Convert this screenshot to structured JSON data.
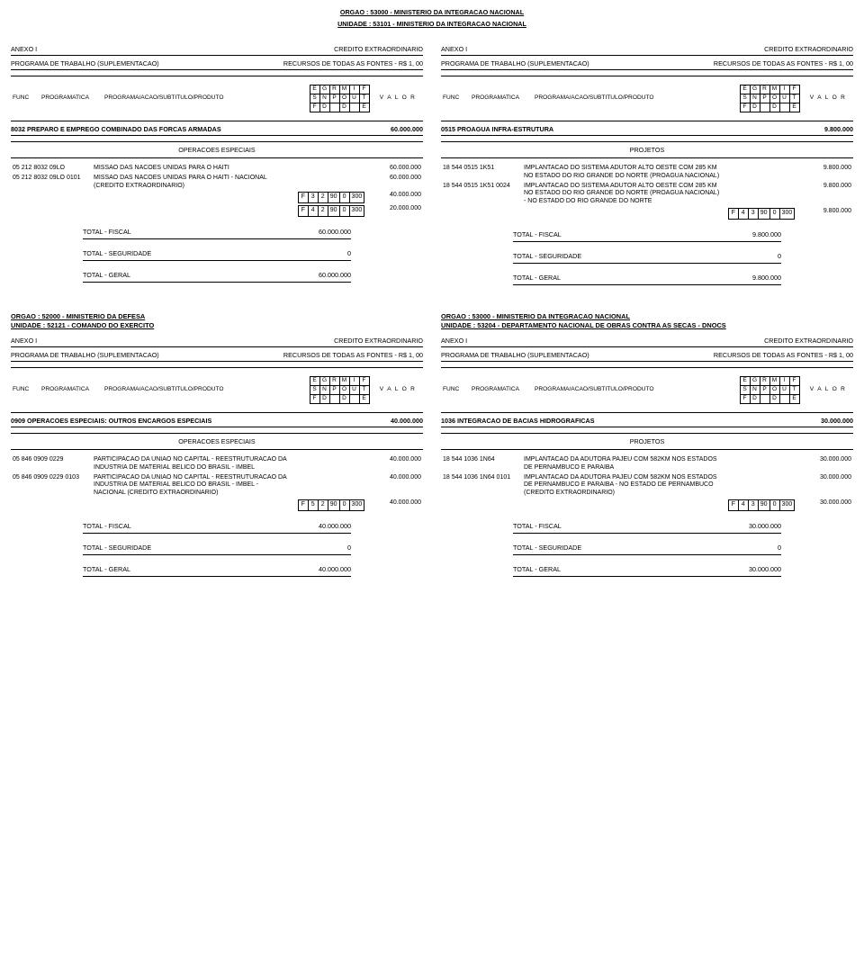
{
  "top_header": {
    "orgao": "ORGAO : 53000 - MINISTERIO DA INTEGRACAO NACIONAL",
    "unidade": "UNIDADE : 53101 - MINISTERIO DA INTEGRACAO NACIONAL"
  },
  "shared": {
    "anexo": "ANEXO I",
    "credito": "CREDITO EXTRAORDINARIO",
    "programa": "PROGRAMA DE TRABALHO (SUPLEMENTACAO)",
    "recursos": "RECURSOS DE TODAS AS FONTES - R$ 1, 00",
    "colhdr": {
      "func": "FUNC",
      "programatica": "PROGRAMATICA",
      "produto": "PROGRAMA/ACAO/SUBTITULO/PRODUTO",
      "grid_top": [
        "E",
        "G",
        "R",
        "M",
        "I",
        "F"
      ],
      "grid_mid": [
        "S",
        "N",
        "P",
        "O",
        "U",
        "T"
      ],
      "grid_bot": [
        "F",
        "D",
        "",
        "D",
        "",
        "E"
      ],
      "valor": "V A L O R"
    },
    "total_fiscal": "TOTAL - FISCAL",
    "total_seguridade": "TOTAL - SEGURIDADE",
    "total_geral": "TOTAL - GERAL",
    "operacoes": "OPERACOES ESPECIAIS",
    "projetos": "PROJETOS"
  },
  "upper": {
    "left": {
      "program_title": "8032 PREPARO E EMPREGO COMBINADO DAS FORCAS ARMADAS",
      "program_value": "60.000.000",
      "section": "OPERACOES ESPECIAIS",
      "rows": [
        {
          "code": "05 212 8032 09LO",
          "desc": "MISSAO DAS NACOES UNIDAS PARA O HAITI",
          "grid": null,
          "value": "60.000.000"
        },
        {
          "code": "05 212 8032 09LO 0101",
          "desc": "MISSAO DAS NACOES UNIDAS PARA O HAITI - NACIONAL (CREDITO EXTRAORDINARIO)",
          "grid": null,
          "value": "60.000.000"
        },
        {
          "code": "",
          "desc": "",
          "grid": [
            "F",
            "3",
            "2",
            "90",
            "0",
            "300"
          ],
          "value": "40.000.000"
        },
        {
          "code": "",
          "desc": "",
          "grid": [
            "F",
            "4",
            "2",
            "90",
            "0",
            "300"
          ],
          "value": "20.000.000"
        }
      ],
      "totals": {
        "fiscal": "60.000.000",
        "seguridade": "0",
        "geral": "60.000.000"
      }
    },
    "right": {
      "program_title": "0515 PROAGUA INFRA-ESTRUTURA",
      "program_value": "9.800.000",
      "section": "PROJETOS",
      "rows": [
        {
          "code": "18 544 0515 1K51",
          "desc": "IMPLANTACAO DO SISTEMA ADUTOR ALTO OESTE COM 285 KM NO ESTADO DO RIO GRANDE DO NORTE (PROAGUA NACIONAL)",
          "grid": null,
          "value": "9.800.000"
        },
        {
          "code": "18 544 0515 1K51 0024",
          "desc": "IMPLANTACAO DO SISTEMA ADUTOR ALTO OESTE COM 285 KM NO ESTADO DO RIO GRANDE DO NORTE (PROAGUA NACIONAL) - NO ESTADO DO RIO GRANDE DO NORTE",
          "grid": null,
          "value": "9.800.000"
        },
        {
          "code": "",
          "desc": "",
          "grid": [
            "F",
            "4",
            "3",
            "90",
            "0",
            "300"
          ],
          "value": "9.800.000"
        }
      ],
      "totals": {
        "fiscal": "9.800.000",
        "seguridade": "0",
        "geral": "9.800.000"
      }
    }
  },
  "lower": {
    "left": {
      "orgao": "ORGAO : 52000 - MINISTERIO DA DEFESA",
      "unidade": "UNIDADE : 52121 - COMANDO DO EXERCITO",
      "program_title": "0909 OPERACOES ESPECIAIS: OUTROS ENCARGOS ESPECIAIS",
      "program_value": "40.000.000",
      "section": "OPERACOES ESPECIAIS",
      "rows": [
        {
          "code": "05 846 0909 0229",
          "desc": "PARTICIPACAO DA UNIAO NO CAPITAL - REESTRUTURACAO DA INDUSTRIA DE MATERIAL BELICO DO BRASIL - IMBEL",
          "grid": null,
          "value": "40.000.000"
        },
        {
          "code": "05 846 0909 0229 0103",
          "desc": "PARTICIPACAO DA UNIAO NO CAPITAL - REESTRUTURACAO DA INDUSTRIA DE MATERIAL BELICO DO BRASIL - IMBEL - NACIONAL (CREDITO EXTRAORDINARIO)",
          "grid": null,
          "value": "40.000.000"
        },
        {
          "code": "",
          "desc": "",
          "grid": [
            "F",
            "5",
            "2",
            "90",
            "0",
            "300"
          ],
          "value": "40.000.000"
        }
      ],
      "totals": {
        "fiscal": "40.000.000",
        "seguridade": "0",
        "geral": "40.000.000"
      }
    },
    "right": {
      "orgao": "ORGAO : 53000 - MINISTERIO DA INTEGRACAO NACIONAL",
      "unidade": "UNIDADE : 53204 - DEPARTAMENTO NACIONAL DE OBRAS CONTRA AS SECAS - DNOCS",
      "program_title": "1036 INTEGRACAO DE BACIAS HIDROGRAFICAS",
      "program_value": "30.000.000",
      "section": "PROJETOS",
      "rows": [
        {
          "code": "18 544 1036 1N64",
          "desc": "IMPLANTACAO DA ADUTORA PAJEU COM 582KM NOS ESTADOS DE PERNAMBUCO E PARAIBA",
          "grid": null,
          "value": "30.000.000"
        },
        {
          "code": "18 544 1036 1N64 0101",
          "desc": "IMPLANTACAO DA ADUTORA PAJEU COM 582KM NOS ESTADOS DE PERNAMBUCO E PARAIBA - NO ESTADO DE PERNAMBUCO (CREDITO EXTRAORDINARIO)",
          "grid": null,
          "value": "30.000.000"
        },
        {
          "code": "",
          "desc": "",
          "grid": [
            "F",
            "4",
            "3",
            "90",
            "0",
            "300"
          ],
          "value": "30.000.000"
        }
      ],
      "totals": {
        "fiscal": "30.000.000",
        "seguridade": "0",
        "geral": "30.000.000"
      }
    }
  }
}
